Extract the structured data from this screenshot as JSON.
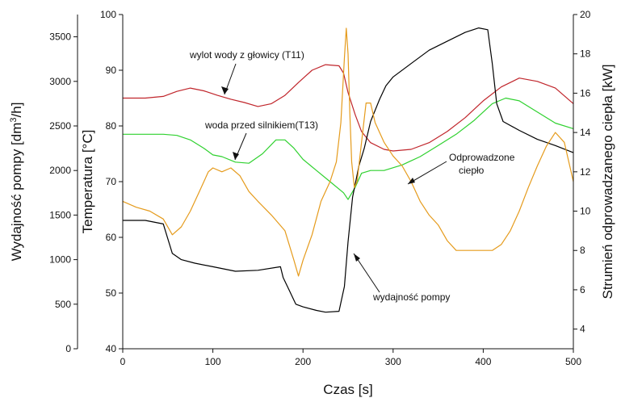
{
  "chart_data": {
    "type": "line",
    "xlabel": "Czas [s]",
    "xlim": [
      0,
      500
    ],
    "xticks": [
      0,
      100,
      200,
      300,
      400,
      500
    ],
    "axes": {
      "pump": {
        "label_parts": [
          "Wydajność pompy [dm",
          "3",
          "/h]"
        ],
        "lim": [
          0,
          3750
        ],
        "ticks": [
          0,
          500,
          1000,
          1500,
          2000,
          2500,
          3000,
          3500
        ]
      },
      "temp": {
        "label": "Temperatura [°C]",
        "lim": [
          40,
          100
        ],
        "ticks": [
          40,
          50,
          60,
          70,
          80,
          90,
          100
        ]
      },
      "heat": {
        "label": "Strumień odprowadzanego ciepła [kW]",
        "lim": [
          3,
          20
        ],
        "ticks": [
          4,
          6,
          8,
          10,
          12,
          14,
          16,
          18,
          20
        ]
      }
    },
    "annotations": [
      {
        "text": "wylot wody z głowicy (T11)"
      },
      {
        "text": "woda przed silnikiem(T13)"
      },
      {
        "text": "Odprowadzone"
      },
      {
        "text": "ciepło"
      },
      {
        "text": "wydajność pompy"
      }
    ],
    "series": [
      {
        "color": "#c0252b",
        "axis": "temp",
        "x": [
          0,
          25,
          45,
          60,
          75,
          90,
          105,
          120,
          135,
          150,
          165,
          180,
          195,
          210,
          225,
          240,
          245,
          250,
          258,
          265,
          275,
          290,
          300,
          320,
          340,
          360,
          380,
          400,
          420,
          440,
          460,
          480,
          500
        ],
        "y": [
          85,
          85,
          85.3,
          86.2,
          86.8,
          86.3,
          85.5,
          84.8,
          84.2,
          83.5,
          84,
          85.5,
          87.8,
          90,
          91,
          90.8,
          89.5,
          86,
          82,
          79,
          77,
          75.8,
          75.5,
          75.8,
          77,
          79,
          81.5,
          84.5,
          87,
          88.6,
          88,
          86.8,
          84
        ]
      },
      {
        "color": "#2fd12f",
        "axis": "temp",
        "x": [
          0,
          45,
          60,
          75,
          90,
          100,
          110,
          125,
          140,
          155,
          170,
          180,
          190,
          200,
          215,
          230,
          245,
          250,
          258,
          265,
          275,
          290,
          310,
          330,
          350,
          370,
          390,
          410,
          425,
          440,
          460,
          480,
          500
        ],
        "y": [
          78.5,
          78.5,
          78.3,
          77.5,
          76,
          74.8,
          74.5,
          73.5,
          73.3,
          75,
          77.5,
          77.5,
          76,
          74,
          72,
          70,
          68,
          66.8,
          69,
          71.5,
          72,
          72,
          73,
          74.5,
          76.5,
          78.5,
          81,
          84,
          85,
          84.5,
          82.5,
          80.5,
          79.5
        ]
      },
      {
        "color": "#000000",
        "axis": "pump",
        "x": [
          0,
          25,
          45,
          55,
          65,
          80,
          100,
          125,
          150,
          175,
          178,
          185,
          192,
          200,
          215,
          225,
          240,
          246,
          250,
          255,
          262,
          268,
          275,
          285,
          292,
          300,
          320,
          340,
          360,
          380,
          395,
          405,
          410,
          415,
          422,
          440,
          460,
          480,
          500
        ],
        "y": [
          1440,
          1440,
          1400,
          1070,
          1000,
          960,
          920,
          870,
          880,
          920,
          800,
          650,
          500,
          470,
          430,
          410,
          420,
          700,
          1200,
          1700,
          2050,
          2250,
          2550,
          2800,
          2950,
          3050,
          3200,
          3350,
          3450,
          3550,
          3600,
          3580,
          3200,
          2750,
          2550,
          2450,
          2350,
          2280,
          2200
        ]
      },
      {
        "color": "#e59b1c",
        "axis": "heat",
        "x": [
          0,
          15,
          30,
          45,
          55,
          65,
          75,
          85,
          95,
          100,
          110,
          120,
          130,
          140,
          150,
          165,
          180,
          190,
          195,
          200,
          210,
          220,
          230,
          237,
          242,
          246,
          248,
          250,
          252,
          254,
          257,
          260,
          265,
          270,
          275,
          280,
          290,
          300,
          310,
          320,
          330,
          340,
          350,
          360,
          370,
          380,
          390,
          400,
          410,
          420,
          430,
          440,
          450,
          460,
          470,
          480,
          490,
          500
        ],
        "y": [
          10.5,
          10.2,
          10,
          9.6,
          8.8,
          9.2,
          10,
          11,
          12,
          12.2,
          12,
          12.2,
          11.8,
          11,
          10.5,
          9.8,
          9,
          7.5,
          6.7,
          7.5,
          8.8,
          10.5,
          11.5,
          12.5,
          14.5,
          17.8,
          19.3,
          18,
          15,
          12.5,
          11.2,
          11.5,
          13.5,
          15.5,
          15.5,
          14.5,
          13.5,
          12.8,
          12.3,
          11.5,
          10.5,
          9.8,
          9.3,
          8.5,
          8,
          8,
          8,
          8,
          8,
          8.3,
          9,
          10,
          11.2,
          12.3,
          13.3,
          14,
          13.5,
          11.5
        ]
      }
    ]
  }
}
